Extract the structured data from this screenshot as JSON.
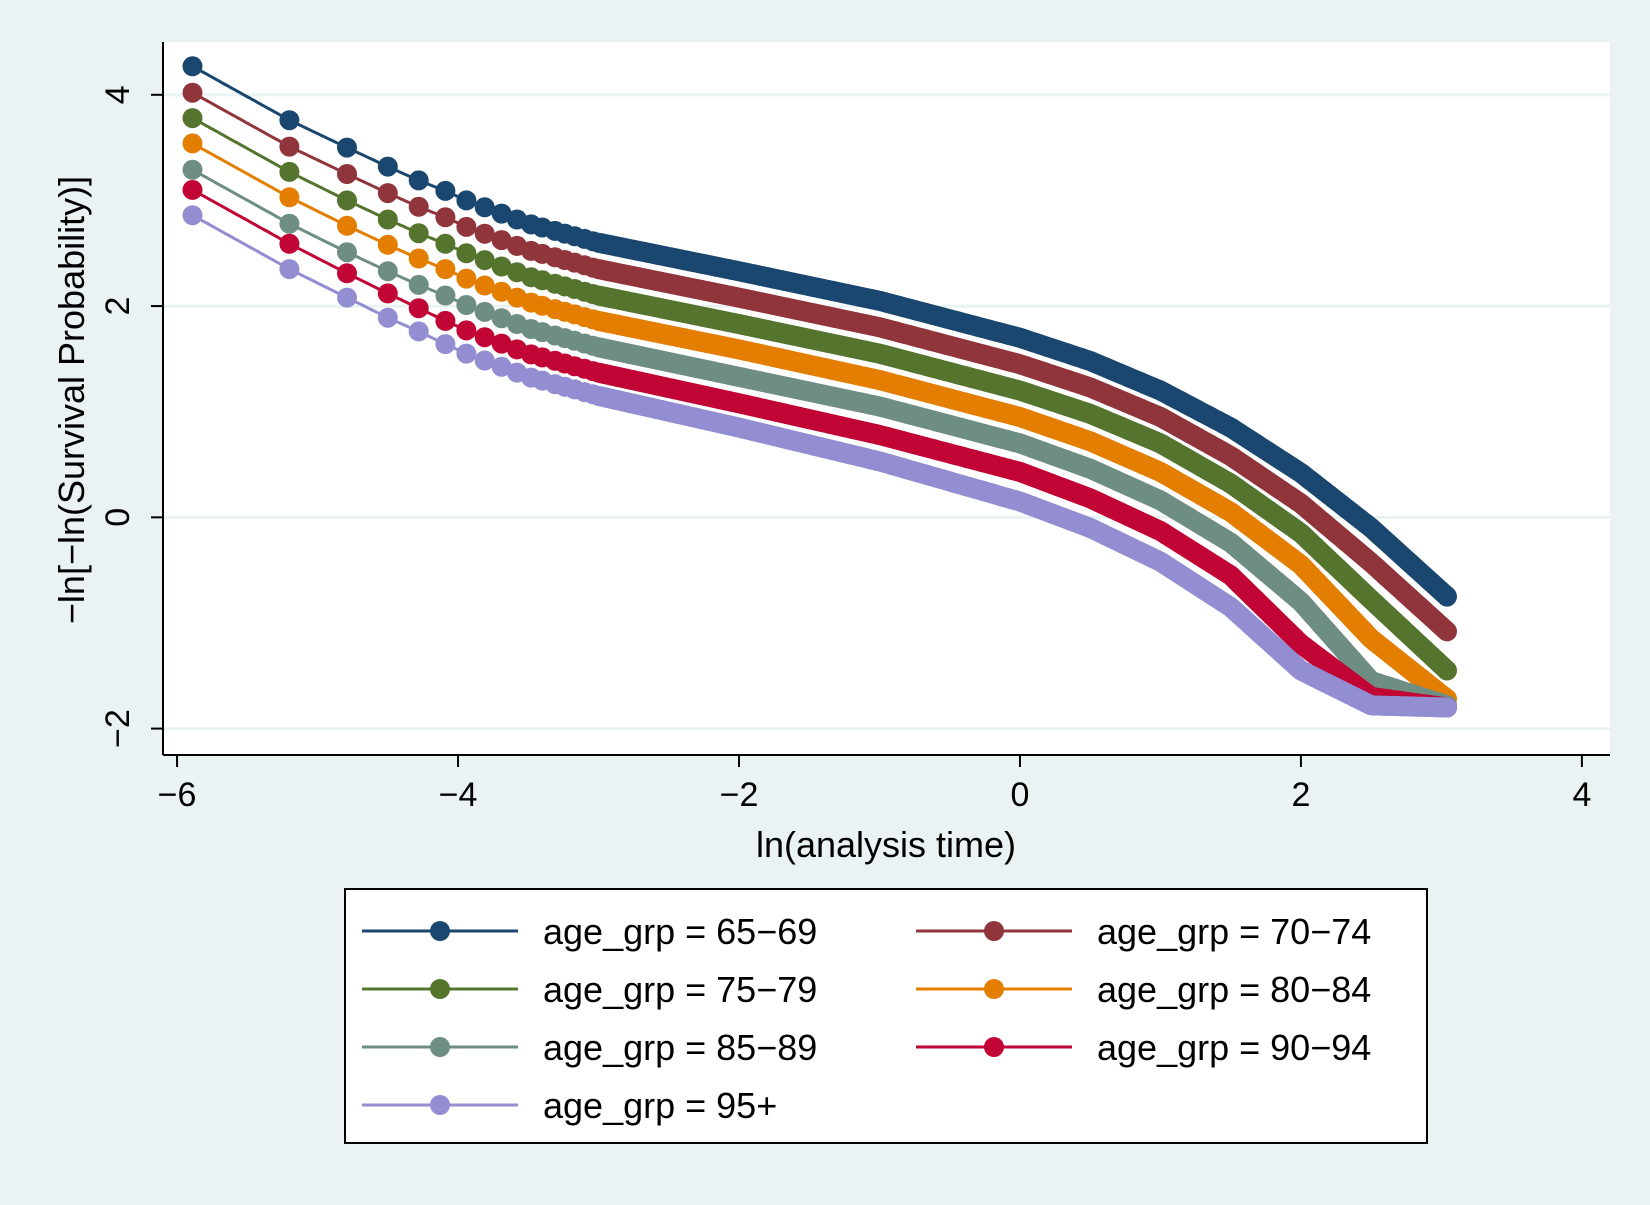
{
  "chart_data": {
    "type": "line",
    "title": "",
    "xlabel": "ln(analysis time)",
    "ylabel": "−ln[−ln(Survival Probability)]",
    "xlim": [
      -6.1,
      4.2
    ],
    "ylim": [
      -2.25,
      4.5
    ],
    "xticks": [
      -6,
      -4,
      -2,
      0,
      2,
      4
    ],
    "yticks": [
      -2,
      0,
      2,
      4
    ],
    "xtick_labels": [
      "−6",
      "−4",
      "−2",
      "0",
      "2",
      "4"
    ],
    "ytick_labels": [
      "−2",
      "0",
      "2",
      "4"
    ],
    "grid": "horizontal",
    "legend_position": "bottom",
    "marker": "circle",
    "x_marker_points": [
      -5.89,
      -5.2,
      -4.79,
      -4.5,
      -4.28,
      -4.09,
      -3.94,
      -3.81,
      -3.69,
      -3.58,
      -3.48,
      -3.4,
      -3.31,
      -3.24,
      -3.17,
      -3.1,
      -3.04
    ],
    "x_start": -5.89,
    "x_end": 3.04,
    "series": [
      {
        "name": "age_grp = 65−69",
        "color": "#1a476f",
        "x": [
          -5.89,
          -5.2,
          -4.79,
          -4.5,
          -4.28,
          -4.09,
          -3.94,
          -3.5,
          -3.0,
          -2.0,
          -1.0,
          0.0,
          0.5,
          1.0,
          1.5,
          2.0,
          2.5,
          3.04
        ],
        "y": [
          4.27,
          3.76,
          3.5,
          3.32,
          3.19,
          3.09,
          3.0,
          2.78,
          2.6,
          2.33,
          2.05,
          1.7,
          1.48,
          1.2,
          0.85,
          0.42,
          -0.1,
          -0.75
        ]
      },
      {
        "name": "age_grp = 70−74",
        "color": "#90353b",
        "x": [
          -5.89,
          -5.2,
          -4.79,
          -4.5,
          -4.28,
          -4.09,
          -3.94,
          -3.5,
          -3.0,
          -2.0,
          -1.0,
          0.0,
          0.5,
          1.0,
          1.5,
          2.0,
          2.5,
          3.04
        ],
        "y": [
          4.02,
          3.51,
          3.25,
          3.07,
          2.94,
          2.84,
          2.75,
          2.53,
          2.35,
          2.08,
          1.8,
          1.45,
          1.23,
          0.95,
          0.58,
          0.13,
          -0.43,
          -1.08
        ]
      },
      {
        "name": "age_grp = 75−79",
        "color": "#55752f",
        "x": [
          -5.89,
          -5.2,
          -4.79,
          -4.5,
          -4.28,
          -4.09,
          -3.94,
          -3.5,
          -3.0,
          -2.0,
          -1.0,
          0.0,
          0.5,
          1.0,
          1.5,
          2.0,
          2.5,
          3.04
        ],
        "y": [
          3.78,
          3.27,
          3.0,
          2.82,
          2.69,
          2.59,
          2.5,
          2.28,
          2.1,
          1.83,
          1.55,
          1.2,
          0.98,
          0.7,
          0.32,
          -0.15,
          -0.78,
          -1.45
        ]
      },
      {
        "name": "age_grp = 80−84",
        "color": "#e37e00",
        "x": [
          -5.89,
          -5.2,
          -4.79,
          -4.5,
          -4.28,
          -4.09,
          -3.94,
          -3.5,
          -3.0,
          -2.0,
          -1.0,
          0.0,
          0.5,
          1.0,
          1.5,
          2.0,
          2.5,
          3.04
        ],
        "y": [
          3.54,
          3.03,
          2.76,
          2.58,
          2.45,
          2.35,
          2.26,
          2.04,
          1.86,
          1.59,
          1.3,
          0.95,
          0.72,
          0.43,
          0.05,
          -0.45,
          -1.15,
          -1.72
        ]
      },
      {
        "name": "age_grp = 85−89",
        "color": "#6e8e84",
        "x": [
          -5.89,
          -5.2,
          -4.79,
          -4.5,
          -4.28,
          -4.09,
          -3.94,
          -3.5,
          -3.0,
          -2.0,
          -1.0,
          0.0,
          0.5,
          1.0,
          1.5,
          2.0,
          2.5,
          3.04
        ],
        "y": [
          3.29,
          2.78,
          2.51,
          2.33,
          2.2,
          2.1,
          2.01,
          1.79,
          1.61,
          1.33,
          1.05,
          0.7,
          0.46,
          0.16,
          -0.24,
          -0.8,
          -1.55,
          -1.78
        ]
      },
      {
        "name": "age_grp = 90−94",
        "color": "#c10534",
        "x": [
          -5.89,
          -5.2,
          -4.79,
          -4.5,
          -4.28,
          -4.09,
          -3.94,
          -3.5,
          -3.0,
          -2.0,
          -1.0,
          0.0,
          0.5,
          1.0,
          1.5,
          2.0,
          2.5,
          3.04
        ],
        "y": [
          3.1,
          2.59,
          2.31,
          2.12,
          1.98,
          1.86,
          1.77,
          1.55,
          1.37,
          1.08,
          0.78,
          0.43,
          0.18,
          -0.13,
          -0.55,
          -1.2,
          -1.7,
          -1.8
        ]
      },
      {
        "name": "age_grp = 95+",
        "color": "#938dd2",
        "x": [
          -5.89,
          -5.2,
          -4.79,
          -4.5,
          -4.28,
          -4.09,
          -3.94,
          -3.5,
          -3.0,
          -2.0,
          -1.0,
          0.0,
          0.5,
          1.0,
          1.5,
          2.0,
          2.5,
          3.04
        ],
        "y": [
          2.86,
          2.35,
          2.08,
          1.89,
          1.76,
          1.64,
          1.55,
          1.33,
          1.15,
          0.85,
          0.53,
          0.15,
          -0.1,
          -0.42,
          -0.85,
          -1.45,
          -1.78,
          -1.8
        ]
      }
    ]
  }
}
